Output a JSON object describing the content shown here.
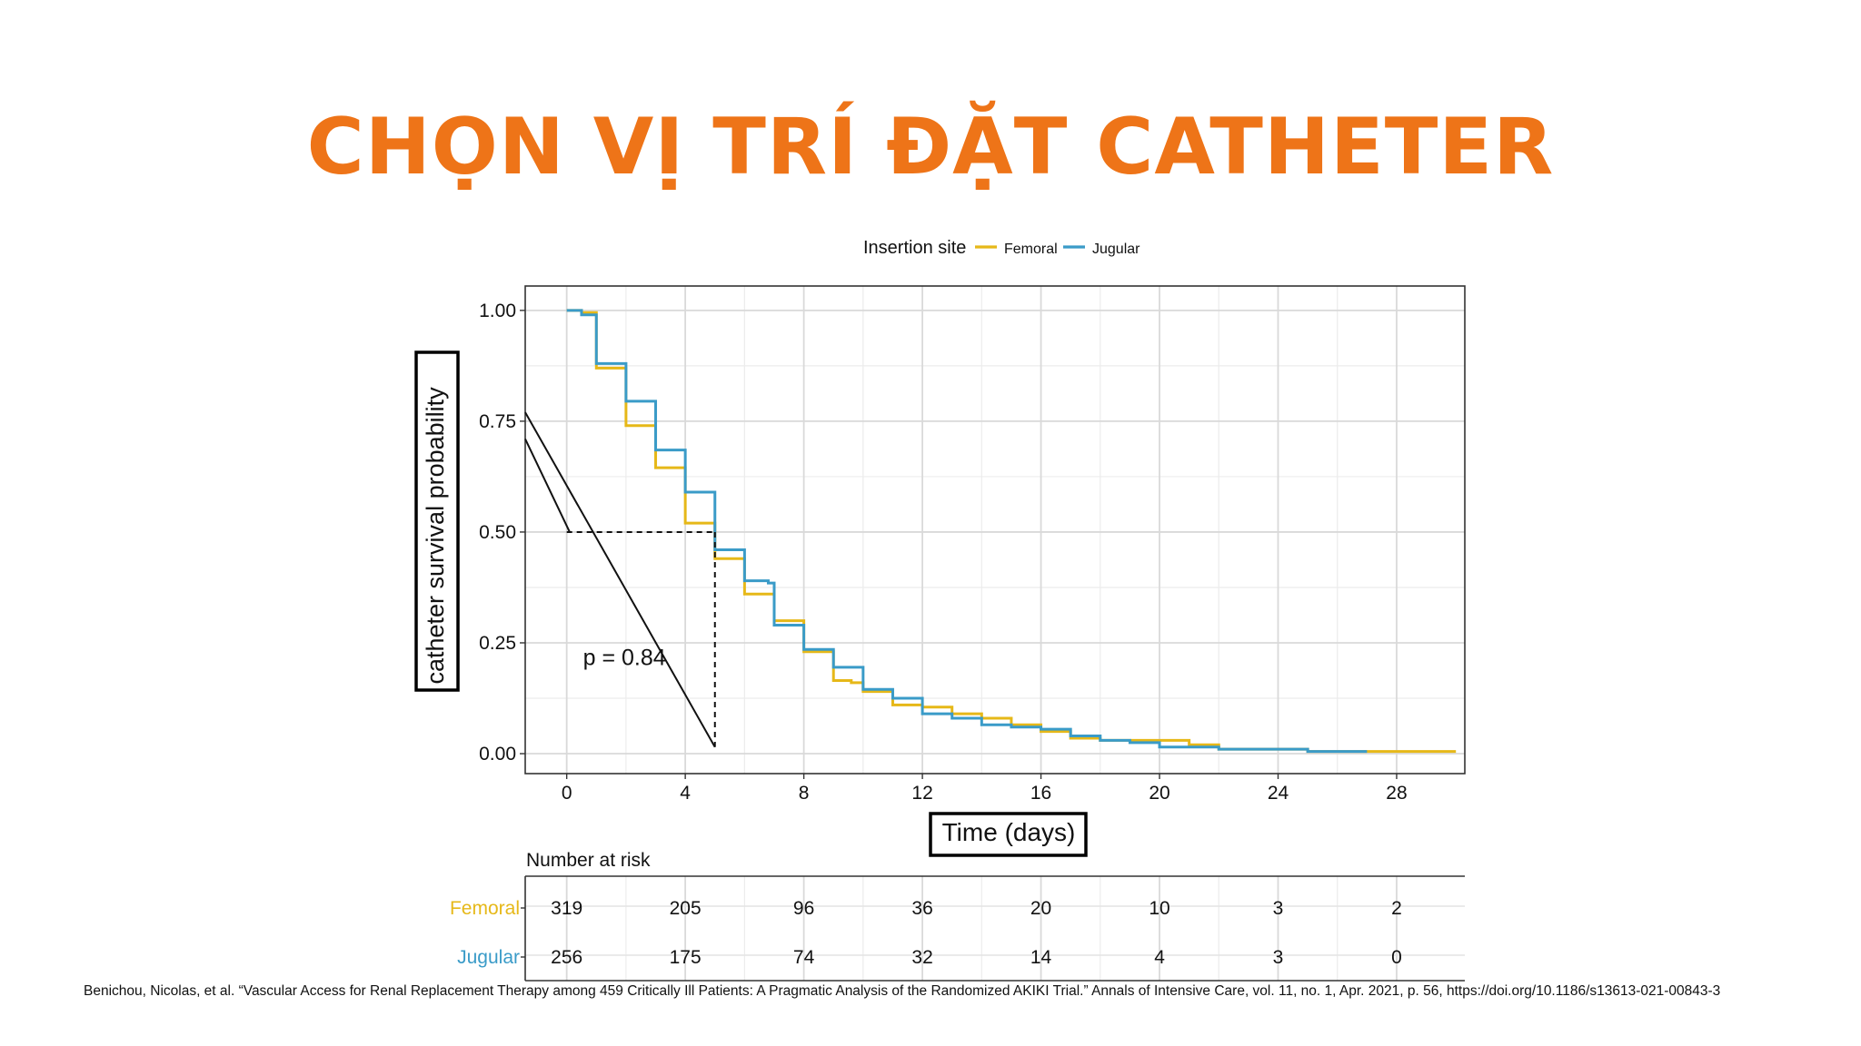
{
  "slide": {
    "title": "CHỌN VỊ TRÍ ĐẶT CATHETER",
    "title_color": "#ee7418",
    "citation": "Benichou, Nicolas, et al. “Vascular Access for Renal Replacement Therapy among 459 Critically Ill Patients: A Pragmatic Analysis of the Randomized AKIKI Trial.” Annals of Intensive Care, vol. 11, no. 1, Apr. 2021, p. 56, https://doi.org/10.1186/s13613-021-00843-3"
  },
  "chart_data": {
    "type": "line",
    "step": true,
    "legend_title": "Insertion site",
    "legend_position": "top",
    "xlabel": "Time (days)",
    "ylabel": "catheter survival probability",
    "xlim": [
      -1.4,
      30.3
    ],
    "ylim": [
      -0.045,
      1.055
    ],
    "x_ticks": [
      0,
      4,
      8,
      12,
      16,
      20,
      24,
      28
    ],
    "y_ticks": [
      0,
      0.25,
      0.5,
      0.75,
      1.0
    ],
    "y_tick_labels": [
      "0.00",
      "0.25",
      "0.50",
      "0.75",
      "1.00"
    ],
    "grid": true,
    "annotation": "p = 0.84",
    "median_line": {
      "x": 5,
      "y": 0.5
    },
    "series": [
      {
        "name": "Femoral",
        "color": "#e6b818",
        "x": [
          0,
          0.5,
          1,
          2,
          3,
          4,
          5,
          6,
          7,
          8,
          9,
          9.6,
          10,
          11,
          12,
          13,
          14,
          15,
          16,
          17,
          18,
          19,
          20,
          21,
          22,
          23,
          24,
          25,
          26,
          27,
          28,
          29
        ],
        "y": [
          1.0,
          0.995,
          0.87,
          0.74,
          0.645,
          0.52,
          0.44,
          0.36,
          0.3,
          0.23,
          0.165,
          0.16,
          0.14,
          0.11,
          0.105,
          0.09,
          0.08,
          0.065,
          0.05,
          0.035,
          0.03,
          0.03,
          0.03,
          0.02,
          0.01,
          0.01,
          0.01,
          0.005,
          0.005,
          0.005,
          0.005,
          0.005
        ]
      },
      {
        "name": "Jugular",
        "color": "#3a9bc8",
        "x": [
          0,
          0.5,
          1,
          2,
          3,
          4,
          5,
          6,
          6.8,
          7,
          8,
          9,
          10,
          11,
          12,
          13,
          14,
          15,
          16,
          17,
          18,
          19,
          20,
          21,
          22,
          23,
          24,
          25,
          26
        ],
        "y": [
          1.0,
          0.99,
          0.88,
          0.795,
          0.685,
          0.59,
          0.46,
          0.39,
          0.385,
          0.29,
          0.235,
          0.195,
          0.145,
          0.125,
          0.09,
          0.08,
          0.065,
          0.06,
          0.055,
          0.04,
          0.03,
          0.025,
          0.015,
          0.015,
          0.01,
          0.01,
          0.01,
          0.005,
          0.005
        ]
      }
    ],
    "risk_table": {
      "title": "Number at risk",
      "times": [
        0,
        4,
        8,
        12,
        16,
        20,
        24,
        28
      ],
      "rows": [
        {
          "name": "Femoral",
          "color": "#e6b818",
          "values": [
            "319",
            "205",
            "96",
            "36",
            "20",
            "10",
            "3",
            "2"
          ]
        },
        {
          "name": "Jugular",
          "color": "#3a9bc8",
          "values": [
            "256",
            "175",
            "74",
            "32",
            "14",
            "4",
            "3",
            "0"
          ]
        }
      ]
    }
  }
}
